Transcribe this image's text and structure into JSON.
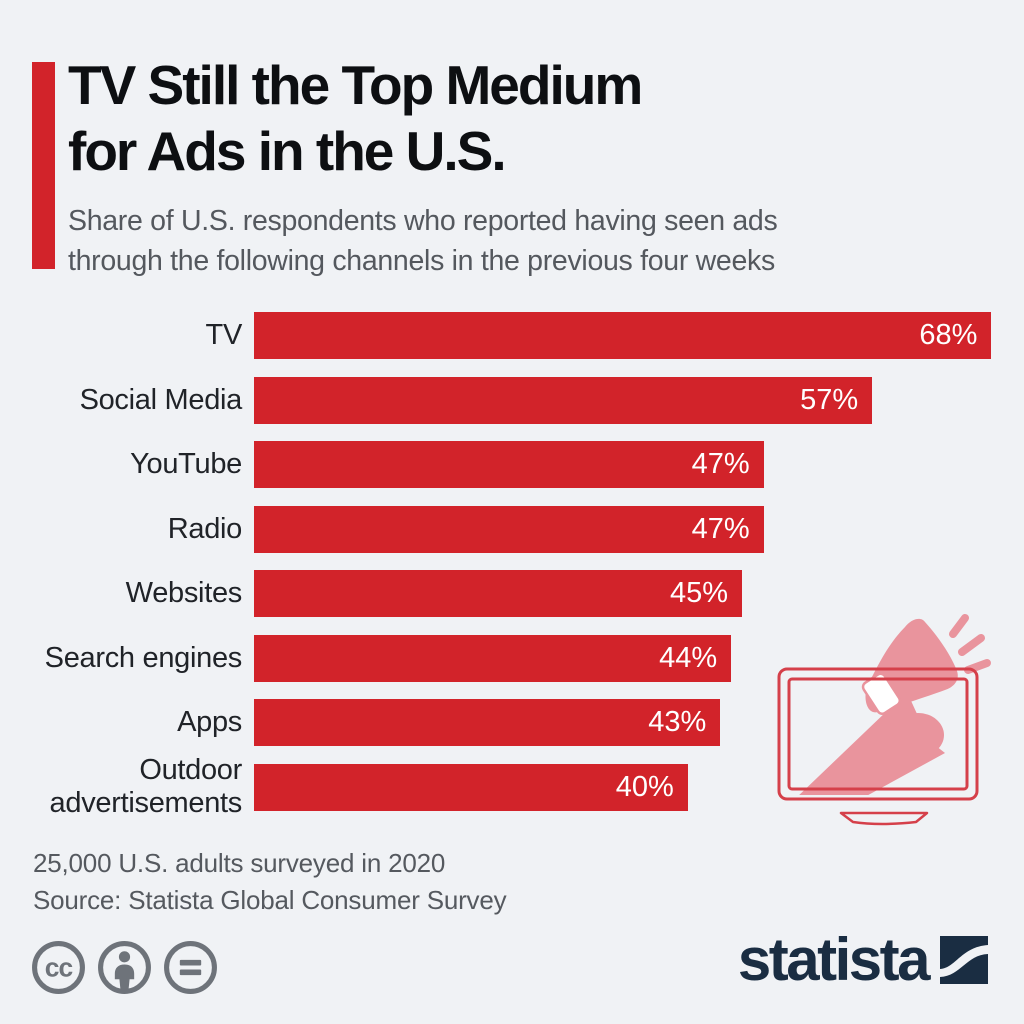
{
  "header": {
    "title_line1": "TV Still the Top Medium",
    "title_line2": "for Ads in the U.S.",
    "subtitle_line1": "Share of U.S. respondents who reported having seen ads",
    "subtitle_line2": "through the following channels in the previous four weeks"
  },
  "chart_data": {
    "type": "bar",
    "orientation": "horizontal",
    "categories": [
      "TV",
      "Social Media",
      "YouTube",
      "Radio",
      "Websites",
      "Search engines",
      "Apps",
      "Outdoor advertisements"
    ],
    "values": [
      68,
      57,
      47,
      47,
      45,
      44,
      43,
      40
    ],
    "unit": "%",
    "title": "TV Still the Top Medium for Ads in the U.S.",
    "xlabel": "",
    "ylabel": "",
    "xlim": [
      0,
      71
    ],
    "grid": false,
    "legend": false,
    "value_labels_inside_bars": true,
    "bar_color": "#d2232a",
    "value_label_color": "#ffffff"
  },
  "footer": {
    "note": "25,000 U.S. adults surveyed in 2020",
    "source": "Source: Statista Global Consumer Survey"
  },
  "license": {
    "icons": [
      "cc-icon",
      "attribution-icon",
      "no-derivatives-icon"
    ],
    "icon_color": "#6e737a",
    "cc_glyph": "cc"
  },
  "branding": {
    "logo_text": "statista",
    "logo_color": "#1a2d42"
  },
  "colors": {
    "background": "#f0f2f5",
    "accent_red": "#d2232a",
    "illustration_outline": "#d5404a",
    "illustration_fill": "#e9949d",
    "title_text": "#0d0f12",
    "subtitle_text": "#54585e",
    "label_text": "#202328",
    "footer_text": "#55595f"
  }
}
